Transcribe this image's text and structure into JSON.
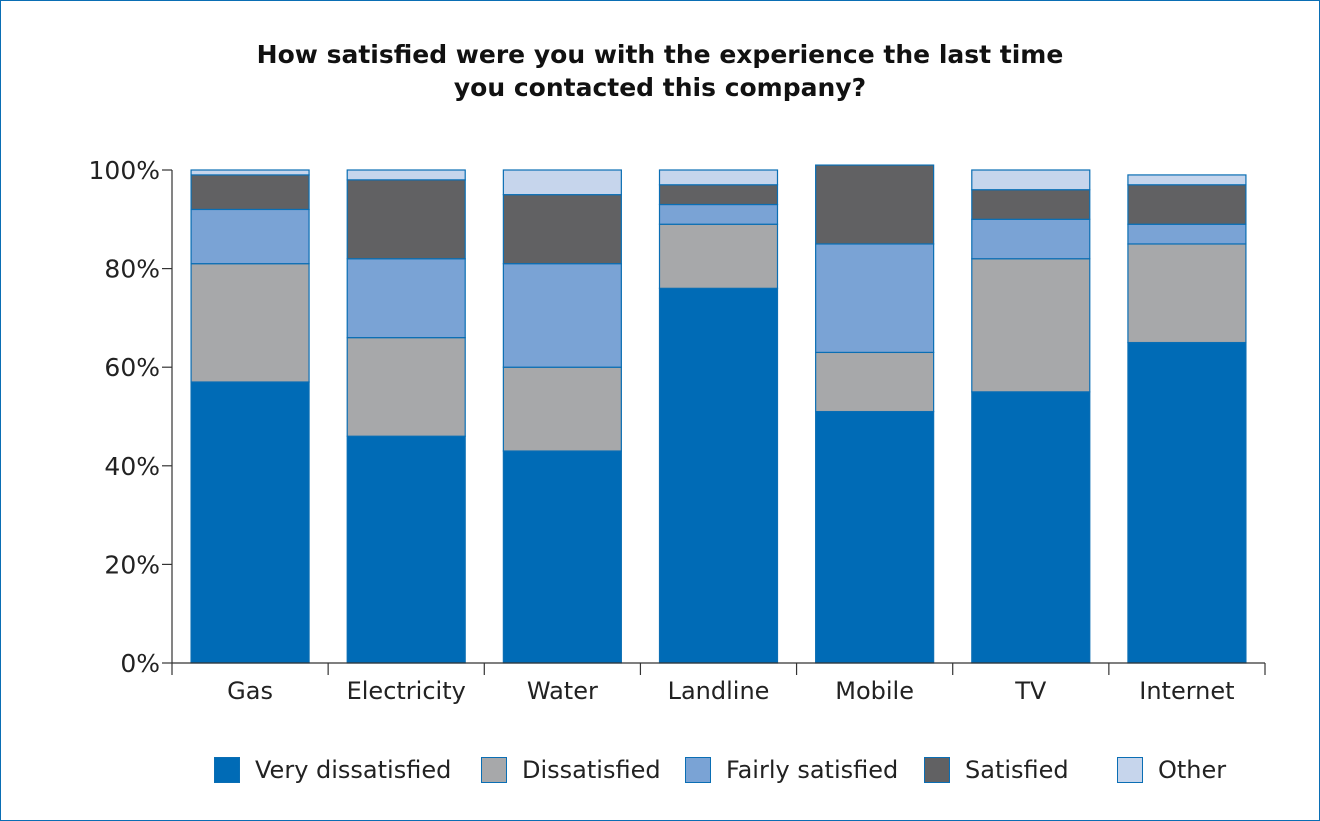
{
  "colors": {
    "very_dissatisfied": "#006bb6",
    "dissatisfied": "#a7a8aa",
    "fairly_satisfied": "#7aa3d5",
    "satisfied": "#616163",
    "other": "#c6d5ec",
    "outline": "#0a6eb4",
    "frame": "#0a6eb4"
  },
  "chart_data": {
    "type": "bar",
    "stacked": true,
    "title": "How satisfied were you with the experience the last time you contacted this company?",
    "title_lines": [
      "How satisfied were you with the experience the last time",
      "you contacted this company?"
    ],
    "categories": [
      "Gas",
      "Electricity",
      "Water",
      "Landline",
      "Mobile",
      "TV",
      "Internet"
    ],
    "series": [
      {
        "name": "Very dissatisfied",
        "values": [
          57,
          46,
          43,
          76,
          51,
          55,
          65
        ]
      },
      {
        "name": "Dissatisfied",
        "values": [
          24,
          20,
          17,
          13,
          12,
          27,
          20
        ]
      },
      {
        "name": "Fairly satisfied",
        "values": [
          11,
          16,
          21,
          4,
          22,
          8,
          4
        ]
      },
      {
        "name": "Satisfied",
        "values": [
          7,
          16,
          14,
          4,
          16,
          6,
          8
        ]
      },
      {
        "name": "Other",
        "values": [
          1,
          2,
          5,
          3,
          0,
          4,
          2
        ]
      }
    ],
    "yticks": [
      "0%",
      "20%",
      "40%",
      "60%",
      "80%",
      "100%"
    ],
    "ylim": [
      0,
      100
    ],
    "xlabel": "",
    "ylabel": "",
    "grid": false,
    "legend_position": "bottom"
  }
}
